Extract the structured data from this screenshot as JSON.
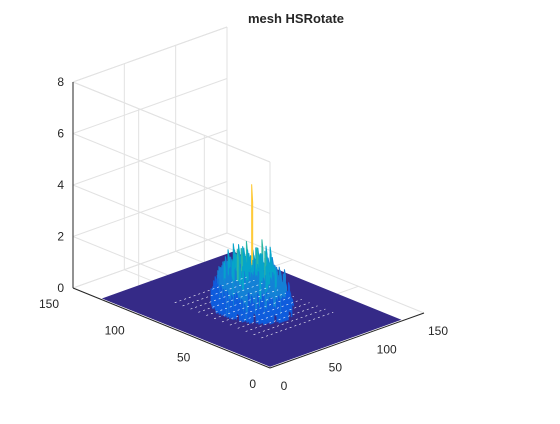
{
  "chart_data": {
    "type": "mesh",
    "title": "mesh HSRotate",
    "xlabel": "",
    "ylabel": "",
    "zlabel": "",
    "xlim": [
      0,
      150
    ],
    "ylim": [
      0,
      150
    ],
    "zlim": [
      0,
      8
    ],
    "xticks": [
      "0",
      "50",
      "100",
      "150"
    ],
    "yticks": [
      "0",
      "50",
      "100",
      "150"
    ],
    "zticks": [
      "0",
      "2",
      "4",
      "6",
      "8"
    ],
    "grid": true,
    "surface": {
      "x_range": [
        0,
        128
      ],
      "y_range": [
        0,
        128
      ],
      "base_value": 0.1,
      "plateau_value": 2.3,
      "plateau_center": [
        64,
        64
      ],
      "plateau_radius": 26,
      "peak_value": 4.9,
      "peak_location": [
        64,
        64
      ],
      "colormap": [
        "#352a87",
        "#0f5cdd",
        "#1481d6",
        "#06a4ca",
        "#2eb7a4",
        "#87bf77",
        "#d1bb59",
        "#fec832",
        "#f9fb0e"
      ]
    }
  }
}
